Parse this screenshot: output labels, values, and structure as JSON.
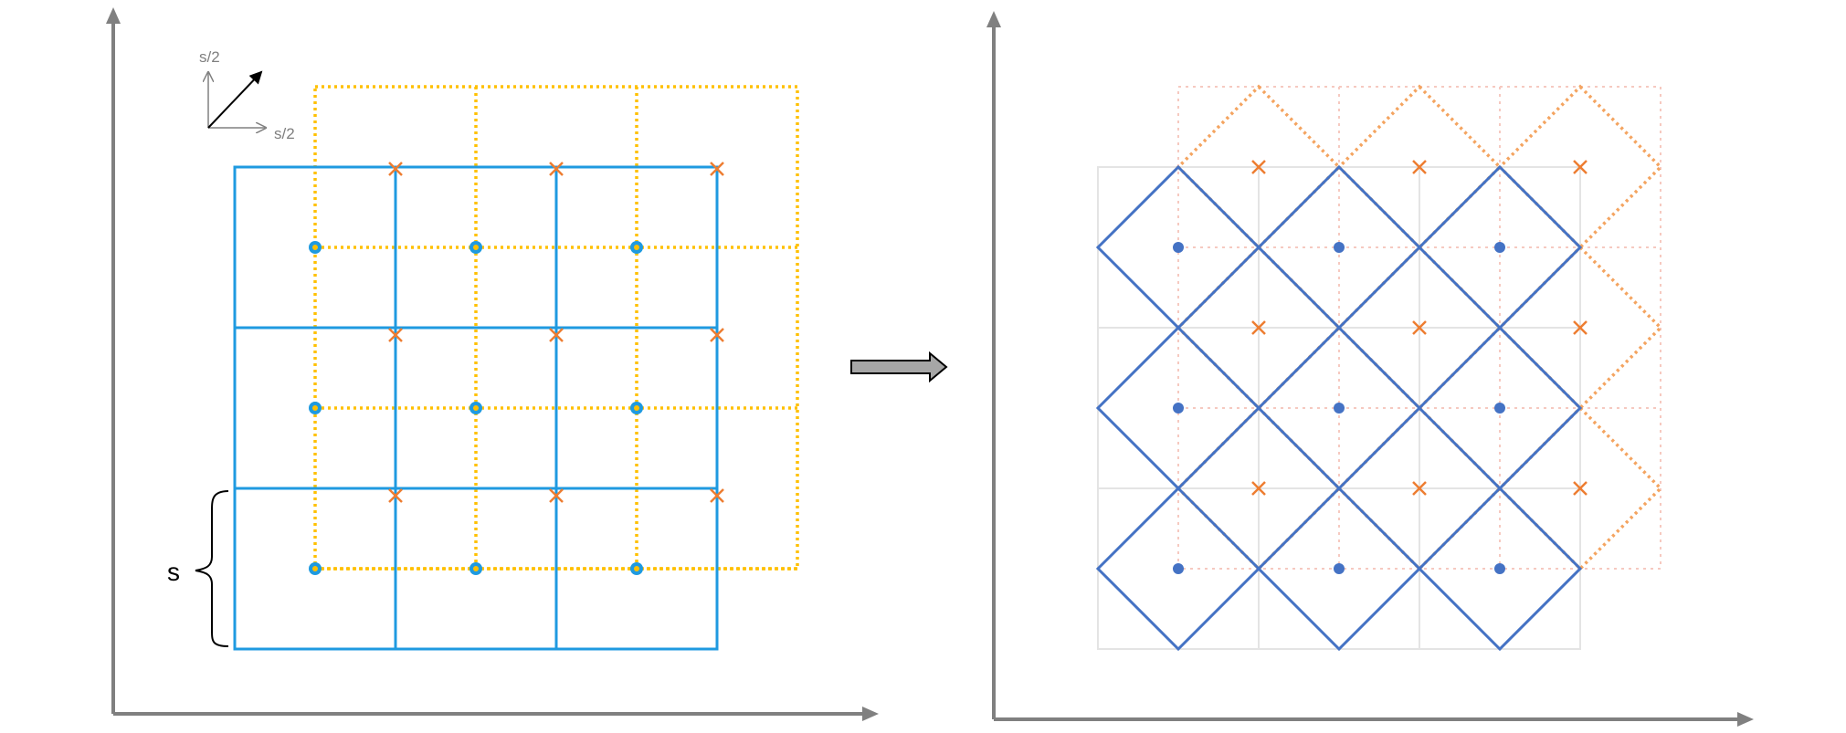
{
  "labels": {
    "step_up": "s/2",
    "step_right": "s/2",
    "cell_size": "s"
  },
  "colors": {
    "axis": "#808080",
    "blue_grid": "#1f9ae0",
    "yellow_grid": "#ffc000",
    "cross": "#ed7d31",
    "dot": "#4472c4",
    "diamond_blue": "#4472c4",
    "diamond_orange": "#f4a460",
    "faint_grid": "#e4e4e4",
    "faint_dotted": "#f6c9c0",
    "arrow_fill": "#a6a6a6",
    "arrow_stroke": "#000000"
  },
  "grid": {
    "rows": 3,
    "cols": 3
  },
  "icons": {
    "dot_marker": "filled-circle",
    "cross_marker": "x-mark",
    "transform_arrow": "block-arrow-right"
  }
}
